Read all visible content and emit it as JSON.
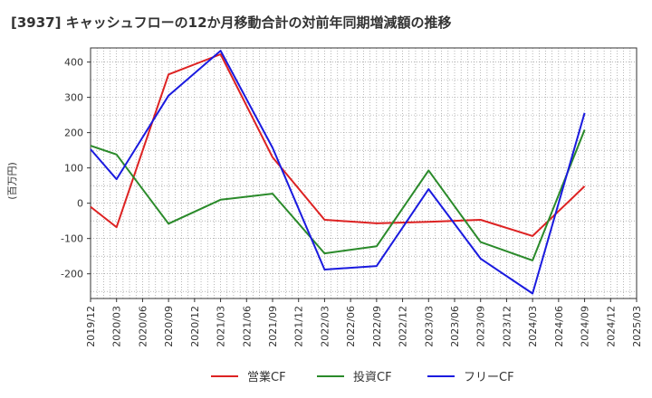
{
  "chart_data": {
    "type": "line",
    "title": "[3937]  キャッシュフローの12か月移動合計の対前年同期増減額の推移",
    "ylabel": "(百万円)",
    "xlabel": "",
    "ylim": [
      -270,
      440
    ],
    "yticks": [
      400,
      300,
      200,
      100,
      0,
      -100,
      -200
    ],
    "categories": [
      "2019/12",
      "2020/03",
      "2020/06",
      "2020/09",
      "2020/12",
      "2021/03",
      "2021/06",
      "2021/09",
      "2021/12",
      "2022/03",
      "2022/06",
      "2022/09",
      "2022/12",
      "2023/03",
      "2023/06",
      "2023/09",
      "2023/12",
      "2024/03",
      "2024/06",
      "2024/09",
      "2024/12",
      "2025/03"
    ],
    "grid": true,
    "legend_position": "bottom",
    "series": [
      {
        "name": "営業CF",
        "color": "#dd2222",
        "values": [
          -10,
          -68,
          null,
          365,
          null,
          422,
          null,
          130,
          null,
          -47,
          null,
          -57,
          null,
          -53,
          null,
          -47,
          null,
          -93,
          null,
          48,
          null,
          null
        ]
      },
      {
        "name": "投資CF",
        "color": "#2a8a2a",
        "values": [
          163,
          138,
          null,
          -58,
          null,
          10,
          null,
          27,
          null,
          -142,
          null,
          -122,
          null,
          93,
          null,
          -110,
          null,
          -162,
          null,
          208,
          null,
          null
        ]
      },
      {
        "name": "フリーCF",
        "color": "#1a1adf",
        "values": [
          153,
          68,
          null,
          305,
          null,
          432,
          null,
          157,
          null,
          -188,
          null,
          -178,
          null,
          40,
          null,
          -157,
          null,
          -256,
          null,
          256,
          null,
          null
        ]
      }
    ]
  }
}
